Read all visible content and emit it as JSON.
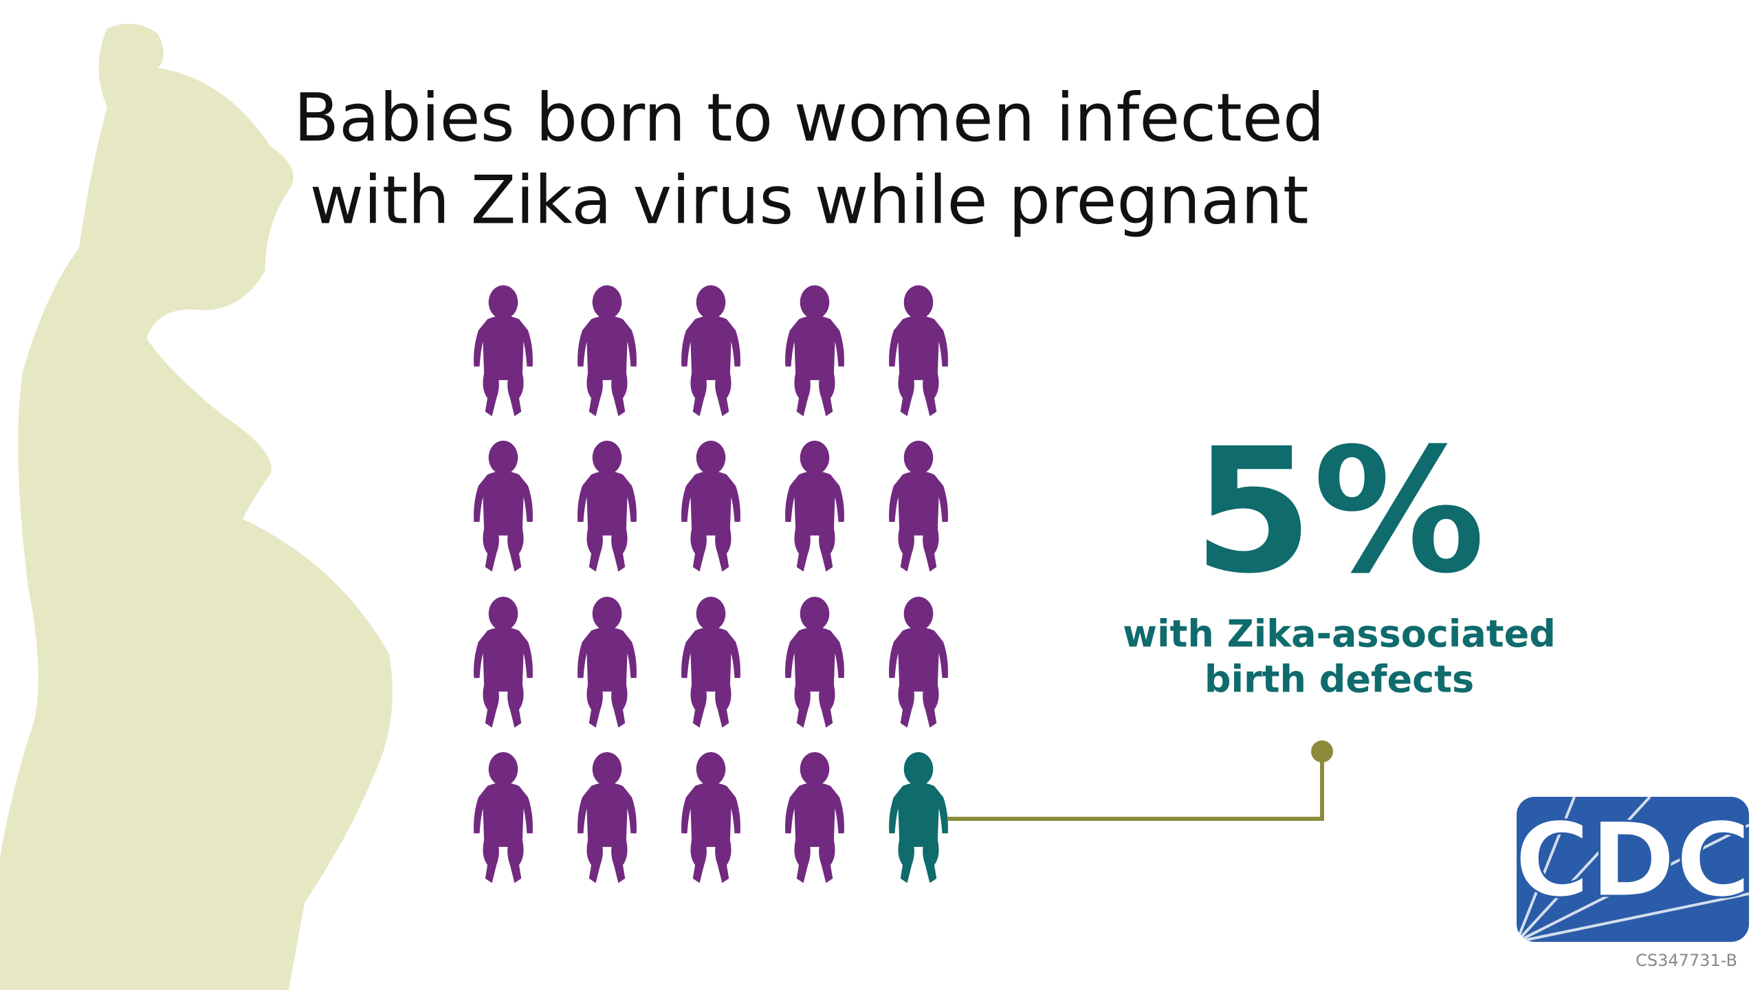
{
  "title": {
    "lines": [
      "Babies born to women infected",
      "with Zika virus while pregnant"
    ]
  },
  "stat": {
    "value": "5%",
    "caption": [
      "with Zika-associated",
      "birth defects"
    ]
  },
  "logo": {
    "text": "CDC"
  },
  "code": "CS347731-B"
}
